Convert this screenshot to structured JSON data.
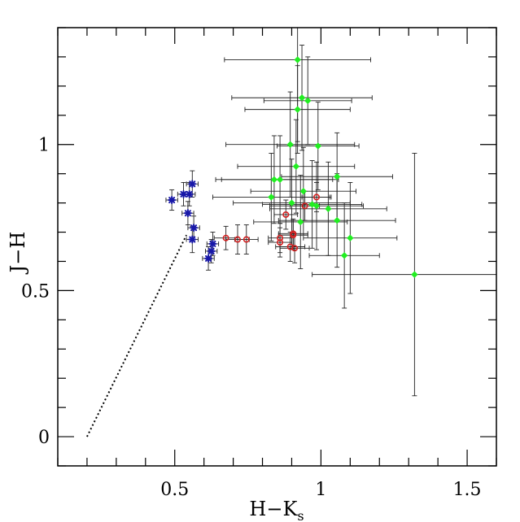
{
  "chart_data": {
    "type": "scatter",
    "title": "",
    "xlabel": "H−K",
    "xlabel_sub": "s",
    "ylabel": "J−H",
    "xlim": [
      0.1,
      1.6
    ],
    "ylim": [
      -0.1,
      1.4
    ],
    "xticks": [
      {
        "value": 0.5,
        "label": "0.5"
      },
      {
        "value": 1.0,
        "label": "1"
      },
      {
        "value": 1.5,
        "label": "1.5"
      }
    ],
    "yticks": [
      {
        "value": 0.0,
        "label": "0"
      },
      {
        "value": 0.5,
        "label": "0.5"
      },
      {
        "value": 1.0,
        "label": "1"
      }
    ],
    "minor_tick_step": 0.1,
    "grid": false,
    "colors": {
      "blue_series": "#1818a8",
      "red_series": "#d42020",
      "green_series": "#22ee22",
      "error_bars": "#222222",
      "reference_line": "#000000"
    },
    "reference_line": {
      "style": "dotted",
      "x": [
        0.2,
        0.54
      ],
      "y": [
        0.0,
        0.69
      ]
    },
    "series": [
      {
        "name": "blue",
        "marker": "asterisk",
        "points": [
          {
            "x": 0.49,
            "y": 0.81,
            "xerr": 0.02,
            "yerr": 0.035
          },
          {
            "x": 0.53,
            "y": 0.83,
            "xerr": 0.02,
            "yerr": 0.04
          },
          {
            "x": 0.55,
            "y": 0.83,
            "xerr": 0.02,
            "yerr": 0.04
          },
          {
            "x": 0.56,
            "y": 0.865,
            "xerr": 0.02,
            "yerr": 0.045
          },
          {
            "x": 0.545,
            "y": 0.765,
            "xerr": 0.02,
            "yerr": 0.04
          },
          {
            "x": 0.565,
            "y": 0.715,
            "xerr": 0.02,
            "yerr": 0.04
          },
          {
            "x": 0.56,
            "y": 0.675,
            "xerr": 0.02,
            "yerr": 0.045
          },
          {
            "x": 0.63,
            "y": 0.66,
            "xerr": 0.02,
            "yerr": 0.04
          },
          {
            "x": 0.625,
            "y": 0.635,
            "xerr": 0.02,
            "yerr": 0.04
          },
          {
            "x": 0.615,
            "y": 0.61,
            "xerr": 0.02,
            "yerr": 0.04
          }
        ]
      },
      {
        "name": "red",
        "marker": "circle",
        "points": [
          {
            "x": 0.675,
            "y": 0.68,
            "xerr": 0.04,
            "yerr": 0.04
          },
          {
            "x": 0.715,
            "y": 0.675,
            "xerr": 0.04,
            "yerr": 0.05
          },
          {
            "x": 0.745,
            "y": 0.675,
            "xerr": 0.04,
            "yerr": 0.05
          },
          {
            "x": 0.86,
            "y": 0.68,
            "xerr": 0.04,
            "yerr": 0.05
          },
          {
            "x": 0.86,
            "y": 0.665,
            "xerr": 0.04,
            "yerr": 0.05
          },
          {
            "x": 0.88,
            "y": 0.76,
            "xerr": 0.04,
            "yerr": 0.05
          },
          {
            "x": 0.895,
            "y": 0.65,
            "xerr": 0.05,
            "yerr": 0.05
          },
          {
            "x": 0.905,
            "y": 0.69,
            "xerr": 0.05,
            "yerr": 0.05
          },
          {
            "x": 0.905,
            "y": 0.695,
            "xerr": 0.05,
            "yerr": 0.05
          },
          {
            "x": 0.91,
            "y": 0.645,
            "xerr": 0.05,
            "yerr": 0.05
          },
          {
            "x": 0.945,
            "y": 0.79,
            "xerr": 0.05,
            "yerr": 0.05
          },
          {
            "x": 0.985,
            "y": 0.82,
            "xerr": 0.05,
            "yerr": 0.05
          }
        ]
      },
      {
        "name": "green",
        "marker": "diamond",
        "points": [
          {
            "x": 0.92,
            "y": 1.29,
            "xerr": 0.25,
            "yerr": 0.28
          },
          {
            "x": 0.935,
            "y": 1.16,
            "xerr": 0.24,
            "yerr": 0.18
          },
          {
            "x": 0.955,
            "y": 1.15,
            "xerr": 0.15,
            "yerr": 0.15
          },
          {
            "x": 0.92,
            "y": 1.12,
            "xerr": 0.18,
            "yerr": 0.15
          },
          {
            "x": 0.895,
            "y": 1.0,
            "xerr": 0.22,
            "yerr": 0.18
          },
          {
            "x": 0.99,
            "y": 0.995,
            "xerr": 0.14,
            "yerr": 0.15
          },
          {
            "x": 0.915,
            "y": 0.925,
            "xerr": 0.2,
            "yerr": 0.16
          },
          {
            "x": 0.84,
            "y": 0.88,
            "xerr": 0.2,
            "yerr": 0.15
          },
          {
            "x": 0.86,
            "y": 0.88,
            "xerr": 0.2,
            "yerr": 0.15
          },
          {
            "x": 1.055,
            "y": 0.89,
            "xerr": 0.19,
            "yerr": 0.15
          },
          {
            "x": 0.94,
            "y": 0.84,
            "xerr": 0.18,
            "yerr": 0.15
          },
          {
            "x": 0.83,
            "y": 0.82,
            "xerr": 0.2,
            "yerr": 0.15
          },
          {
            "x": 0.9,
            "y": 0.8,
            "xerr": 0.2,
            "yerr": 0.15
          },
          {
            "x": 0.97,
            "y": 0.795,
            "xerr": 0.17,
            "yerr": 0.15
          },
          {
            "x": 0.985,
            "y": 0.79,
            "xerr": 0.16,
            "yerr": 0.15
          },
          {
            "x": 1.025,
            "y": 0.78,
            "xerr": 0.2,
            "yerr": 0.16
          },
          {
            "x": 1.055,
            "y": 0.74,
            "xerr": 0.2,
            "yerr": 0.16
          },
          {
            "x": 0.93,
            "y": 0.735,
            "xerr": 0.16,
            "yerr": 0.16
          },
          {
            "x": 1.1,
            "y": 0.68,
            "xerr": 0.16,
            "yerr": 0.19
          },
          {
            "x": 1.08,
            "y": 0.62,
            "xerr": 0.12,
            "yerr": 0.18
          },
          {
            "x": 1.32,
            "y": 0.555,
            "xerr": 0.35,
            "yerr": 0.415
          }
        ]
      }
    ]
  }
}
